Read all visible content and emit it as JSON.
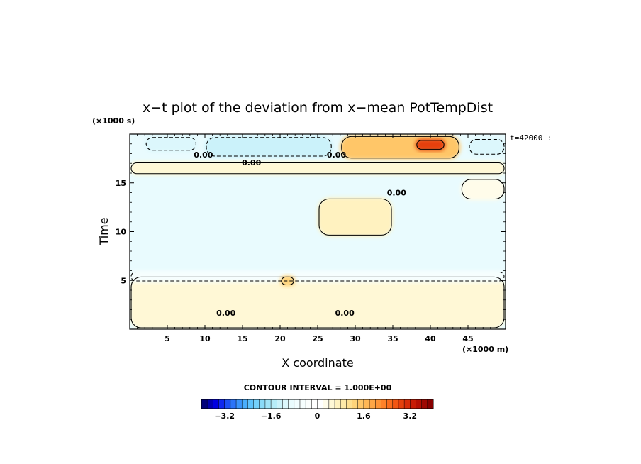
{
  "chart_data": {
    "type": "heatmap",
    "title": "x−t plot of the deviation from x−mean PotTempDist",
    "xlabel": "X coordinate",
    "ylabel": "Time",
    "x_unit": "(×1000 m)",
    "y_unit": "(×1000 s)",
    "xlim": [
      0,
      50
    ],
    "ylim": [
      0,
      20
    ],
    "xticks": [
      5,
      10,
      15,
      20,
      25,
      30,
      35,
      40,
      45
    ],
    "yticks": [
      5,
      10,
      15
    ],
    "time_label": "t=42000 :",
    "contour_interval_text": "CONTOUR INTERVAL = 1.000E+00",
    "contour_labels": [
      {
        "text": "0.00",
        "x": 9.8,
        "y": 17.6
      },
      {
        "text": "0.00",
        "x": 16.2,
        "y": 16.8
      },
      {
        "text": "0.00",
        "x": 27.5,
        "y": 17.6
      },
      {
        "text": "0.00",
        "x": 35.5,
        "y": 13.7
      },
      {
        "text": "0.00",
        "x": 12.8,
        "y": 1.4
      },
      {
        "text": "0.00",
        "x": 28.6,
        "y": 1.4
      }
    ],
    "colorbar": {
      "min": -4.0,
      "max": 4.0,
      "levels": 40,
      "tick_values": [
        -3.2,
        -1.6,
        0,
        1.6,
        3.2
      ],
      "tick_labels": [
        "−3.2",
        "−1.6",
        "0",
        "1.6",
        "3.2"
      ]
    },
    "field_features": [
      {
        "type": "negative",
        "x0": 2,
        "x1": 9,
        "y0": 18.2,
        "y1": 19.8,
        "value": -1.2
      },
      {
        "type": "negative",
        "x0": 10,
        "x1": 27,
        "y0": 17.6,
        "y1": 19.8,
        "value": -1.4
      },
      {
        "type": "negative",
        "x0": 45,
        "x1": 50,
        "y0": 17.8,
        "y1": 19.6,
        "value": -1.2
      },
      {
        "type": "positive",
        "x0": 28,
        "x1": 44,
        "y0": 17.4,
        "y1": 19.9,
        "value": 1.5
      },
      {
        "type": "positive",
        "x0": 38,
        "x1": 42,
        "y0": 18.3,
        "y1": 19.5,
        "value": 2.8
      },
      {
        "type": "positive",
        "x0": 0,
        "x1": 50,
        "y0": 15.8,
        "y1": 17.2,
        "value": 0.4
      },
      {
        "type": "positive",
        "x0": 0,
        "x1": 50,
        "y0": 0,
        "y1": 5.5,
        "value": 0.4
      },
      {
        "type": "negative",
        "x0": 0,
        "x1": 50,
        "y0": 4.8,
        "y1": 6.0,
        "value": -0.6
      },
      {
        "type": "positive",
        "x0": 20,
        "x1": 22,
        "y0": 4.4,
        "y1": 5.5,
        "value": 1.3
      },
      {
        "type": "positive",
        "x0": 25,
        "x1": 35,
        "y0": 9.5,
        "y1": 13.5,
        "value": 0.6
      },
      {
        "type": "positive",
        "x0": 44,
        "x1": 50,
        "y0": 13.2,
        "y1": 15.5,
        "value": 0.3
      }
    ]
  },
  "colors": {
    "scale": [
      "#00007a",
      "#0000b0",
      "#0000e0",
      "#1028f0",
      "#1e50f5",
      "#2c74f8",
      "#3a94fb",
      "#4aaefc",
      "#5ec2fc",
      "#74d0fb",
      "#8adbf8",
      "#a0e4f7",
      "#b6ecf8",
      "#cbf2fa",
      "#dcf7fc",
      "#e9fbfe",
      "#f1fdff",
      "#f6fefe",
      "#fbfefd",
      "#ffffff",
      "#ffffff",
      "#fffcea",
      "#fff8d6",
      "#fff2c0",
      "#ffeaa8",
      "#ffe090",
      "#ffd47a",
      "#ffc668",
      "#ffb756",
      "#ffa645",
      "#ff9436",
      "#ff8128",
      "#fa6c1c",
      "#f25612",
      "#e6400c",
      "#d82c08",
      "#c81c05",
      "#b41003",
      "#9e0802",
      "#880000"
    ],
    "background": "#ffffff"
  }
}
